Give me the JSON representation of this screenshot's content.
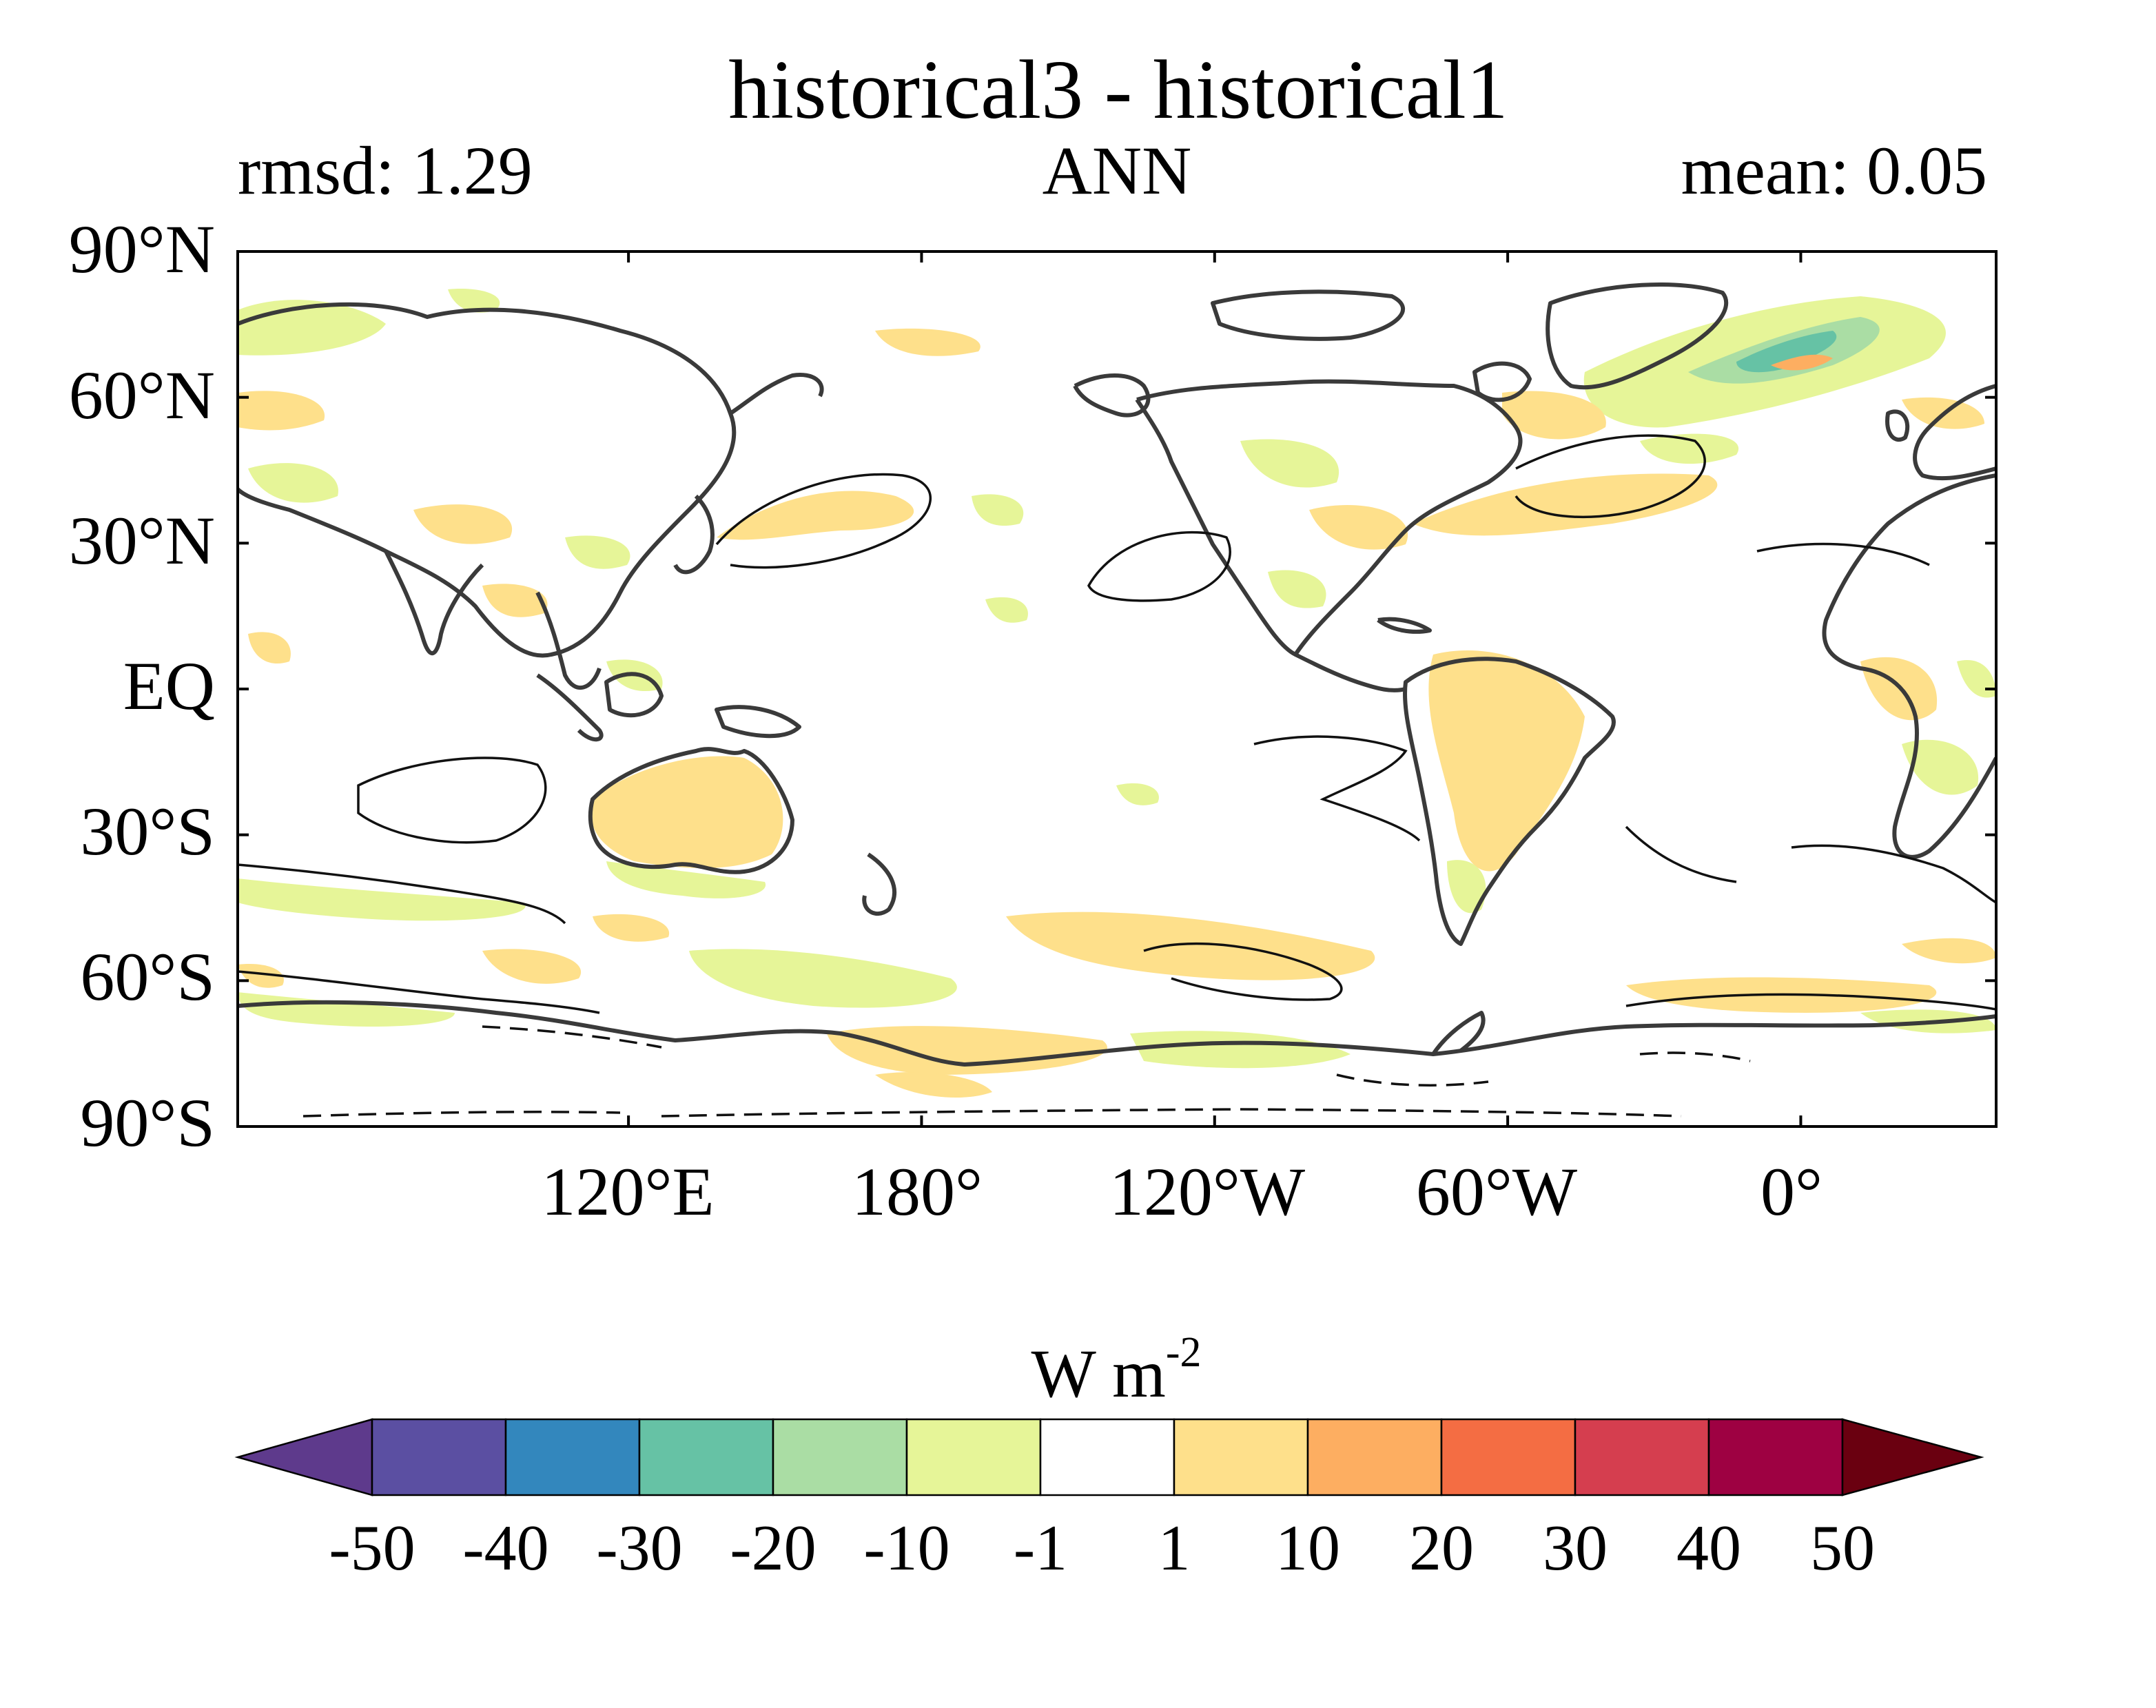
{
  "title": "historical3 - historical1",
  "stats": {
    "rmsd": "rmsd: 1.29",
    "season": "ANN",
    "mean": "mean: 0.05"
  },
  "axes": {
    "y_ticks": [
      {
        "label": "90°N",
        "lat": 90
      },
      {
        "label": "60°N",
        "lat": 60
      },
      {
        "label": "30°N",
        "lat": 30
      },
      {
        "label": "EQ",
        "lat": 0
      },
      {
        "label": "30°S",
        "lat": -30
      },
      {
        "label": "60°S",
        "lat": -60
      },
      {
        "label": "90°S",
        "lat": -90
      }
    ],
    "x_ticks": [
      {
        "label": "120°E",
        "lon": 120
      },
      {
        "label": "180°",
        "lon": 180
      },
      {
        "label": "120°W",
        "lon": 240
      },
      {
        "label": "60°W",
        "lon": 300
      },
      {
        "label": "0°",
        "lon": 360
      }
    ],
    "lon_range": [
      40,
      400
    ],
    "lat_range": [
      -90,
      90
    ]
  },
  "colorbar": {
    "units": "W m",
    "units_exponent": "-2",
    "levels": [
      "-50",
      "-40",
      "-30",
      "-20",
      "-10",
      "-1",
      "1",
      "10",
      "20",
      "30",
      "40",
      "50"
    ],
    "colors": [
      "#5e3a8c",
      "#5b4fa2",
      "#3387bd",
      "#66c2a5",
      "#aadda4",
      "#e6f598",
      "#ffffff",
      "#fee08b",
      "#fdae61",
      "#f46d43",
      "#d53e4f",
      "#9e0142",
      "#6a0010"
    ]
  },
  "colors": {
    "positive_small": "#fee08b",
    "negative_small": "#e6f598",
    "negative_mid": "#aadda4",
    "negative_large": "#66c2a5",
    "positive_mid": "#fdae61",
    "coastline": "#3a3a3a"
  }
}
